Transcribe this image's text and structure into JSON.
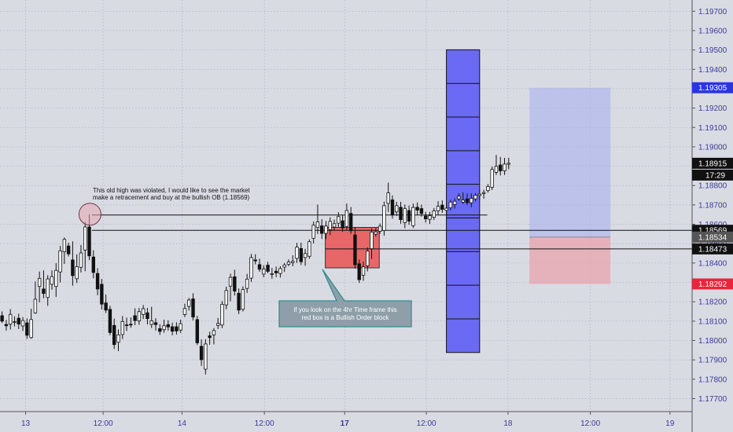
{
  "chart_data": {
    "type": "candlestick",
    "y_axis": {
      "ylim": [
        1.17633,
        1.19758
      ],
      "ticks": [
        "1.19700",
        "1.19600",
        "1.19500",
        "1.19400",
        "1.19300",
        "1.19200",
        "1.19100",
        "1.19000",
        "1.18900",
        "1.18800",
        "1.18700",
        "1.18600",
        "1.18500",
        "1.18400",
        "1.18300",
        "1.18200",
        "1.18100",
        "1.18000",
        "1.17900",
        "1.17800",
        "1.17700"
      ],
      "tick_values": [
        1.197,
        1.196,
        1.195,
        1.194,
        1.193,
        1.192,
        1.191,
        1.19,
        1.189,
        1.188,
        1.187,
        1.186,
        1.185,
        1.184,
        1.183,
        1.182,
        1.181,
        1.18,
        1.179,
        1.178,
        1.177
      ]
    },
    "x_axis": {
      "xlim": [
        0,
        100
      ],
      "labels": [
        {
          "text": "13",
          "x": 3.7,
          "bold": false
        },
        {
          "text": "12:00",
          "x": 14.9,
          "bold": false
        },
        {
          "text": "14",
          "x": 26.3,
          "bold": false
        },
        {
          "text": "12:00",
          "x": 38.2,
          "bold": false
        },
        {
          "text": "17",
          "x": 49.8,
          "bold": true
        },
        {
          "text": "12:00",
          "x": 61.6,
          "bold": false
        },
        {
          "text": "18",
          "x": 73.4,
          "bold": false
        },
        {
          "text": "12:00",
          "x": 85.3,
          "bold": false
        },
        {
          "text": "19",
          "x": 96.8,
          "bold": false
        }
      ]
    },
    "price_badges": [
      {
        "label": "1.19305",
        "value": 1.19305,
        "bg": "#2a35e0",
        "fg": "#ffffff"
      },
      {
        "label": "1.18915",
        "value": 1.18915,
        "bg": "#111111",
        "fg": "#ffffff",
        "extra": "17:29"
      },
      {
        "label": "1.18569",
        "value": 1.18569,
        "bg": "#111111",
        "fg": "#ffffff"
      },
      {
        "label": "1.18534",
        "value": 1.18534,
        "bg": "#555555",
        "fg": "#ffffff"
      },
      {
        "label": "1.18473",
        "value": 1.18473,
        "bg": "#111111",
        "fg": "#ffffff"
      },
      {
        "label": "1.18292",
        "value": 1.18292,
        "bg": "#e8253a",
        "fg": "#ffffff"
      }
    ],
    "horizontal_lines": [
      {
        "value": 1.18569,
        "x_start": 13.3,
        "x_end": 100
      },
      {
        "value": 1.18473,
        "x_start": 47.0,
        "x_end": 100
      },
      {
        "value": 1.18648,
        "x_start": 13.3,
        "x_end": 70.4
      }
    ],
    "order_block": {
      "x0": 47.0,
      "x1": 54.8,
      "ymin": 1.18375,
      "ymax": 1.18584,
      "color": "#e85a5a"
    },
    "blue_column": {
      "x0": 64.5,
      "x1": 69.3,
      "ymin": 1.17938,
      "ymax": 1.19501,
      "color": "#6a6af5",
      "divisions": 9
    },
    "position": {
      "x0": 76.5,
      "x1": 88.2,
      "entry": 1.18534,
      "target": 1.19305,
      "stop": 1.18292
    },
    "circle": {
      "x": 13.0,
      "y": 1.18652
    },
    "annotation": "This old high was violated, I would like to see the market make a retracement and buy at the bullish OB (1.18569)",
    "callout": "If you look on the 4hr Time frame this red box is a Bullish Order block",
    "candles": [
      {
        "o": 1.18128,
        "h": 1.1815,
        "l": 1.1809,
        "c": 1.181,
        "x": 0.3
      },
      {
        "o": 1.18083,
        "h": 1.18106,
        "l": 1.18051,
        "c": 1.18076,
        "x": 0.9
      },
      {
        "o": 1.18084,
        "h": 1.18162,
        "l": 1.18057,
        "c": 1.18135,
        "x": 1.5
      },
      {
        "o": 1.18095,
        "h": 1.18125,
        "l": 1.18073,
        "c": 1.18097,
        "x": 2.1
      },
      {
        "o": 1.18115,
        "h": 1.18139,
        "l": 1.18059,
        "c": 1.18085,
        "x": 2.7
      },
      {
        "o": 1.18075,
        "h": 1.18121,
        "l": 1.18049,
        "c": 1.18103,
        "x": 3.3
      },
      {
        "o": 1.18091,
        "h": 1.18114,
        "l": 1.18008,
        "c": 1.18027,
        "x": 3.9
      },
      {
        "o": 1.18015,
        "h": 1.18164,
        "l": 1.18009,
        "c": 1.18108,
        "x": 4.5
      },
      {
        "o": 1.18143,
        "h": 1.18305,
        "l": 1.18138,
        "c": 1.18213,
        "x": 5.1
      },
      {
        "o": 1.18279,
        "h": 1.18356,
        "l": 1.18197,
        "c": 1.18321,
        "x": 5.7
      },
      {
        "o": 1.18266,
        "h": 1.18362,
        "l": 1.18218,
        "c": 1.18243,
        "x": 6.3
      },
      {
        "o": 1.18222,
        "h": 1.18337,
        "l": 1.18179,
        "c": 1.18318,
        "x": 6.9
      },
      {
        "o": 1.1829,
        "h": 1.18362,
        "l": 1.18262,
        "c": 1.1833,
        "x": 7.5
      },
      {
        "o": 1.18279,
        "h": 1.18399,
        "l": 1.18225,
        "c": 1.18362,
        "x": 8.1
      },
      {
        "o": 1.18354,
        "h": 1.18488,
        "l": 1.18299,
        "c": 1.18463,
        "x": 8.7
      },
      {
        "o": 1.18458,
        "h": 1.18532,
        "l": 1.18395,
        "c": 1.18522,
        "x": 9.3
      },
      {
        "o": 1.18488,
        "h": 1.18505,
        "l": 1.18434,
        "c": 1.18447,
        "x": 9.9
      },
      {
        "o": 1.18416,
        "h": 1.18512,
        "l": 1.18283,
        "c": 1.18335,
        "x": 10.5
      },
      {
        "o": 1.18319,
        "h": 1.18445,
        "l": 1.18297,
        "c": 1.18381,
        "x": 11.1
      },
      {
        "o": 1.18378,
        "h": 1.18493,
        "l": 1.18351,
        "c": 1.18452,
        "x": 11.7
      },
      {
        "o": 1.18467,
        "h": 1.18613,
        "l": 1.18358,
        "c": 1.18586,
        "x": 12.3
      },
      {
        "o": 1.18586,
        "h": 1.18652,
        "l": 1.18415,
        "c": 1.18437,
        "x": 12.9
      },
      {
        "o": 1.18431,
        "h": 1.18466,
        "l": 1.18321,
        "c": 1.18351,
        "x": 13.5
      },
      {
        "o": 1.18346,
        "h": 1.18374,
        "l": 1.18234,
        "c": 1.18266,
        "x": 14.1
      },
      {
        "o": 1.1829,
        "h": 1.18318,
        "l": 1.1816,
        "c": 1.18188,
        "x": 14.7
      },
      {
        "o": 1.18194,
        "h": 1.18237,
        "l": 1.18142,
        "c": 1.18157,
        "x": 15.3
      },
      {
        "o": 1.18161,
        "h": 1.18179,
        "l": 1.18027,
        "c": 1.18041,
        "x": 15.9
      },
      {
        "o": 1.18078,
        "h": 1.18113,
        "l": 1.17956,
        "c": 1.17979,
        "x": 16.5
      },
      {
        "o": 1.17991,
        "h": 1.18057,
        "l": 1.17945,
        "c": 1.18029,
        "x": 17.1
      },
      {
        "o": 1.18031,
        "h": 1.18126,
        "l": 1.18007,
        "c": 1.18098,
        "x": 17.7
      },
      {
        "o": 1.18081,
        "h": 1.18118,
        "l": 1.18049,
        "c": 1.18077,
        "x": 18.3
      },
      {
        "o": 1.18084,
        "h": 1.18119,
        "l": 1.18066,
        "c": 1.18081,
        "x": 18.9
      },
      {
        "o": 1.18128,
        "h": 1.18166,
        "l": 1.18079,
        "c": 1.18103,
        "x": 19.5
      },
      {
        "o": 1.18101,
        "h": 1.18168,
        "l": 1.18081,
        "c": 1.18149,
        "x": 20.1
      },
      {
        "o": 1.18134,
        "h": 1.18183,
        "l": 1.18111,
        "c": 1.18164,
        "x": 20.7
      },
      {
        "o": 1.18143,
        "h": 1.18168,
        "l": 1.18083,
        "c": 1.18113,
        "x": 21.3
      },
      {
        "o": 1.18083,
        "h": 1.18174,
        "l": 1.18065,
        "c": 1.18102,
        "x": 21.9
      },
      {
        "o": 1.18092,
        "h": 1.18115,
        "l": 1.18051,
        "c": 1.18082,
        "x": 22.5
      },
      {
        "o": 1.18061,
        "h": 1.18084,
        "l": 1.18029,
        "c": 1.18047,
        "x": 23.1
      },
      {
        "o": 1.18056,
        "h": 1.18108,
        "l": 1.1804,
        "c": 1.18076,
        "x": 23.7
      },
      {
        "o": 1.18082,
        "h": 1.18104,
        "l": 1.1805,
        "c": 1.1807,
        "x": 24.3
      },
      {
        "o": 1.18071,
        "h": 1.18092,
        "l": 1.18027,
        "c": 1.18048,
        "x": 24.9
      },
      {
        "o": 1.18071,
        "h": 1.18094,
        "l": 1.18031,
        "c": 1.18049,
        "x": 25.5
      },
      {
        "o": 1.18054,
        "h": 1.18108,
        "l": 1.18039,
        "c": 1.18087,
        "x": 26.1
      },
      {
        "o": 1.18134,
        "h": 1.1819,
        "l": 1.18121,
        "c": 1.18165,
        "x": 26.7
      },
      {
        "o": 1.18176,
        "h": 1.1822,
        "l": 1.18155,
        "c": 1.18209,
        "x": 27.3
      },
      {
        "o": 1.18215,
        "h": 1.18244,
        "l": 1.18104,
        "c": 1.18121,
        "x": 27.9
      },
      {
        "o": 1.18108,
        "h": 1.18127,
        "l": 1.17977,
        "c": 1.17988,
        "x": 28.5
      },
      {
        "o": 1.1797,
        "h": 1.18006,
        "l": 1.17869,
        "c": 1.17901,
        "x": 29.1
      },
      {
        "o": 1.17852,
        "h": 1.18007,
        "l": 1.17825,
        "c": 1.17982,
        "x": 29.7
      },
      {
        "o": 1.18024,
        "h": 1.18045,
        "l": 1.17978,
        "c": 1.18015,
        "x": 30.3
      },
      {
        "o": 1.18029,
        "h": 1.18064,
        "l": 1.1798,
        "c": 1.18051,
        "x": 30.9
      },
      {
        "o": 1.18078,
        "h": 1.18116,
        "l": 1.18059,
        "c": 1.18088,
        "x": 31.5
      },
      {
        "o": 1.1808,
        "h": 1.18203,
        "l": 1.18064,
        "c": 1.18187,
        "x": 32.1
      },
      {
        "o": 1.18184,
        "h": 1.18278,
        "l": 1.18161,
        "c": 1.18258,
        "x": 32.7
      },
      {
        "o": 1.18281,
        "h": 1.18345,
        "l": 1.18203,
        "c": 1.18326,
        "x": 33.3
      },
      {
        "o": 1.18329,
        "h": 1.18365,
        "l": 1.18232,
        "c": 1.18255,
        "x": 33.9
      },
      {
        "o": 1.18244,
        "h": 1.18269,
        "l": 1.18137,
        "c": 1.18157,
        "x": 34.5
      },
      {
        "o": 1.18161,
        "h": 1.18279,
        "l": 1.1815,
        "c": 1.18263,
        "x": 35.1
      },
      {
        "o": 1.18269,
        "h": 1.18344,
        "l": 1.18246,
        "c": 1.18317,
        "x": 35.7
      },
      {
        "o": 1.18322,
        "h": 1.18447,
        "l": 1.18303,
        "c": 1.18428,
        "x": 36.3
      },
      {
        "o": 1.18416,
        "h": 1.18445,
        "l": 1.18393,
        "c": 1.18411,
        "x": 36.9
      },
      {
        "o": 1.18392,
        "h": 1.18423,
        "l": 1.18355,
        "c": 1.18368,
        "x": 37.5
      },
      {
        "o": 1.18343,
        "h": 1.18388,
        "l": 1.18327,
        "c": 1.18369,
        "x": 38.1
      },
      {
        "o": 1.18389,
        "h": 1.18406,
        "l": 1.18347,
        "c": 1.18357,
        "x": 38.7
      },
      {
        "o": 1.18342,
        "h": 1.18374,
        "l": 1.18319,
        "c": 1.18345,
        "x": 39.3
      },
      {
        "o": 1.18358,
        "h": 1.18382,
        "l": 1.18327,
        "c": 1.18349,
        "x": 39.9
      },
      {
        "o": 1.18346,
        "h": 1.18384,
        "l": 1.18325,
        "c": 1.18371,
        "x": 40.5
      },
      {
        "o": 1.18379,
        "h": 1.184,
        "l": 1.18354,
        "c": 1.1839,
        "x": 41.1
      },
      {
        "o": 1.18394,
        "h": 1.18419,
        "l": 1.18384,
        "c": 1.18405,
        "x": 41.7
      },
      {
        "o": 1.18402,
        "h": 1.1844,
        "l": 1.18383,
        "c": 1.18409,
        "x": 42.3
      },
      {
        "o": 1.18424,
        "h": 1.18504,
        "l": 1.18401,
        "c": 1.18482,
        "x": 42.9
      },
      {
        "o": 1.18475,
        "h": 1.18505,
        "l": 1.1839,
        "c": 1.18407,
        "x": 43.5
      },
      {
        "o": 1.18428,
        "h": 1.18473,
        "l": 1.18386,
        "c": 1.18449,
        "x": 44.1
      },
      {
        "o": 1.18435,
        "h": 1.18522,
        "l": 1.18422,
        "c": 1.1851,
        "x": 44.7
      },
      {
        "o": 1.18528,
        "h": 1.18614,
        "l": 1.18501,
        "c": 1.18595,
        "x": 45.3
      },
      {
        "o": 1.18583,
        "h": 1.18702,
        "l": 1.1855,
        "c": 1.18612,
        "x": 45.9
      },
      {
        "o": 1.18592,
        "h": 1.18626,
        "l": 1.18524,
        "c": 1.18553,
        "x": 46.5
      },
      {
        "o": 1.18553,
        "h": 1.18617,
        "l": 1.18523,
        "c": 1.18591,
        "x": 47.1
      },
      {
        "o": 1.18572,
        "h": 1.18636,
        "l": 1.18545,
        "c": 1.18615,
        "x": 47.7
      },
      {
        "o": 1.18586,
        "h": 1.18624,
        "l": 1.18569,
        "c": 1.18603,
        "x": 48.3
      },
      {
        "o": 1.18606,
        "h": 1.18662,
        "l": 1.18586,
        "c": 1.1864,
        "x": 48.9
      },
      {
        "o": 1.18618,
        "h": 1.18649,
        "l": 1.18562,
        "c": 1.18581,
        "x": 49.5
      },
      {
        "o": 1.18589,
        "h": 1.18707,
        "l": 1.1857,
        "c": 1.18671,
        "x": 50.1
      },
      {
        "o": 1.18656,
        "h": 1.18689,
        "l": 1.18551,
        "c": 1.18567,
        "x": 50.7
      },
      {
        "o": 1.18545,
        "h": 1.18585,
        "l": 1.18371,
        "c": 1.18391,
        "x": 51.3
      },
      {
        "o": 1.18396,
        "h": 1.18418,
        "l": 1.18297,
        "c": 1.18314,
        "x": 51.9
      },
      {
        "o": 1.18337,
        "h": 1.18407,
        "l": 1.18308,
        "c": 1.1838,
        "x": 52.5
      },
      {
        "o": 1.18386,
        "h": 1.18481,
        "l": 1.18357,
        "c": 1.18462,
        "x": 53.1
      },
      {
        "o": 1.18474,
        "h": 1.18579,
        "l": 1.18421,
        "c": 1.1856,
        "x": 53.7
      },
      {
        "o": 1.18549,
        "h": 1.18581,
        "l": 1.18536,
        "c": 1.18561,
        "x": 54.3
      },
      {
        "o": 1.18564,
        "h": 1.18604,
        "l": 1.18551,
        "c": 1.1859,
        "x": 54.9
      },
      {
        "o": 1.18568,
        "h": 1.18717,
        "l": 1.18541,
        "c": 1.18696,
        "x": 55.5
      },
      {
        "o": 1.18708,
        "h": 1.18815,
        "l": 1.18664,
        "c": 1.18762,
        "x": 56.1
      },
      {
        "o": 1.18726,
        "h": 1.18749,
        "l": 1.18629,
        "c": 1.18648,
        "x": 56.7
      },
      {
        "o": 1.18664,
        "h": 1.18716,
        "l": 1.18644,
        "c": 1.18696,
        "x": 57.3
      },
      {
        "o": 1.18688,
        "h": 1.18716,
        "l": 1.18603,
        "c": 1.18624,
        "x": 57.9
      },
      {
        "o": 1.18609,
        "h": 1.18702,
        "l": 1.1858,
        "c": 1.18682,
        "x": 58.5
      },
      {
        "o": 1.18671,
        "h": 1.18697,
        "l": 1.18597,
        "c": 1.18616,
        "x": 59.1
      },
      {
        "o": 1.18593,
        "h": 1.18707,
        "l": 1.18581,
        "c": 1.18687,
        "x": 59.7
      },
      {
        "o": 1.18688,
        "h": 1.18713,
        "l": 1.18649,
        "c": 1.18673,
        "x": 60.3
      },
      {
        "o": 1.18681,
        "h": 1.18702,
        "l": 1.1864,
        "c": 1.18656,
        "x": 60.9
      },
      {
        "o": 1.18643,
        "h": 1.18664,
        "l": 1.18609,
        "c": 1.18628,
        "x": 61.5
      },
      {
        "o": 1.18626,
        "h": 1.18664,
        "l": 1.18602,
        "c": 1.18644,
        "x": 62.1
      },
      {
        "o": 1.18636,
        "h": 1.18684,
        "l": 1.18622,
        "c": 1.18669,
        "x": 62.7
      },
      {
        "o": 1.18669,
        "h": 1.18719,
        "l": 1.1865,
        "c": 1.18693,
        "x": 63.3
      },
      {
        "o": 1.18699,
        "h": 1.18723,
        "l": 1.18659,
        "c": 1.18677,
        "x": 63.9
      },
      {
        "o": 1.18672,
        "h": 1.18704,
        "l": 1.18646,
        "c": 1.18683,
        "x": 64.5
      },
      {
        "o": 1.18685,
        "h": 1.18726,
        "l": 1.18672,
        "c": 1.18715,
        "x": 65.1
      },
      {
        "o": 1.18702,
        "h": 1.18734,
        "l": 1.18681,
        "c": 1.18719,
        "x": 65.7
      },
      {
        "o": 1.18731,
        "h": 1.1876,
        "l": 1.18721,
        "c": 1.18745,
        "x": 66.3
      },
      {
        "o": 1.18714,
        "h": 1.18765,
        "l": 1.18705,
        "c": 1.18725,
        "x": 66.9
      },
      {
        "o": 1.18731,
        "h": 1.18759,
        "l": 1.18699,
        "c": 1.18712,
        "x": 67.5
      },
      {
        "o": 1.18711,
        "h": 1.18759,
        "l": 1.18688,
        "c": 1.18734,
        "x": 68.1
      },
      {
        "o": 1.18731,
        "h": 1.1876,
        "l": 1.18718,
        "c": 1.1875,
        "x": 68.7
      },
      {
        "o": 1.18749,
        "h": 1.18778,
        "l": 1.18724,
        "c": 1.18756,
        "x": 69.3
      },
      {
        "o": 1.18759,
        "h": 1.18778,
        "l": 1.18732,
        "c": 1.18764,
        "x": 69.9
      },
      {
        "o": 1.18774,
        "h": 1.18808,
        "l": 1.18764,
        "c": 1.18795,
        "x": 70.5
      },
      {
        "o": 1.18791,
        "h": 1.18898,
        "l": 1.18777,
        "c": 1.18883,
        "x": 71.1
      },
      {
        "o": 1.18868,
        "h": 1.18958,
        "l": 1.18855,
        "c": 1.18899,
        "x": 71.7
      },
      {
        "o": 1.18906,
        "h": 1.18948,
        "l": 1.18852,
        "c": 1.18876,
        "x": 72.3
      },
      {
        "o": 1.18876,
        "h": 1.18943,
        "l": 1.18855,
        "c": 1.18911,
        "x": 72.9
      },
      {
        "o": 1.1891,
        "h": 1.18943,
        "l": 1.18884,
        "c": 1.18915,
        "x": 73.5
      }
    ]
  }
}
